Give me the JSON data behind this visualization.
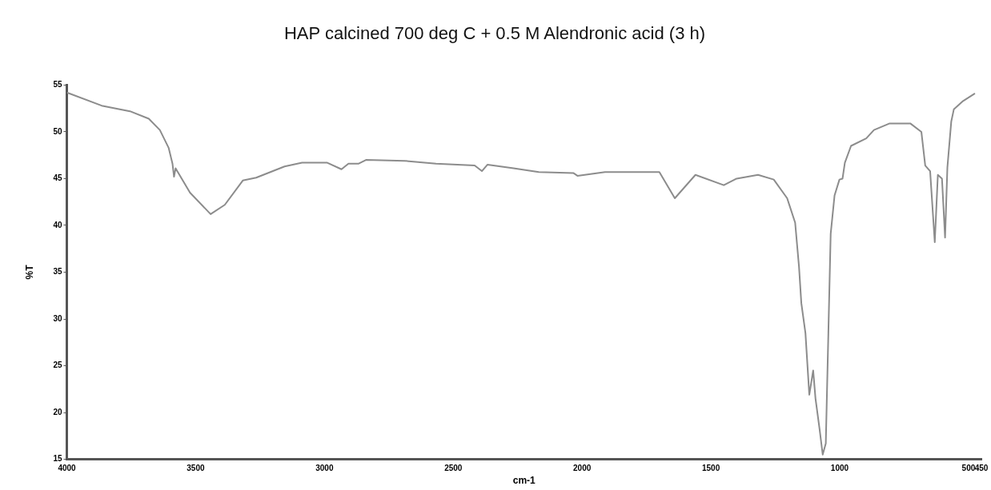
{
  "chart_data": {
    "type": "line",
    "title": "HAP calcined 700 deg C + 0.5 M Alendronic acid (3 h)",
    "xlabel": "cm-1",
    "ylabel": "%T",
    "xlim": [
      4000,
      450
    ],
    "xticks": [
      4000,
      3500,
      3000,
      2500,
      2000,
      1500,
      1000,
      500,
      450
    ],
    "ylim": [
      15,
      55
    ],
    "yticks": [
      15,
      20,
      25,
      30,
      35,
      40,
      45,
      50,
      55
    ],
    "grid": false,
    "legend": false,
    "marker": "none",
    "line_style": "solid",
    "series": [
      {
        "color": "#8c8c8c",
        "x": [
          4000,
          3865,
          3755,
          3682,
          3639,
          3605,
          3590,
          3584,
          3578,
          3522,
          3442,
          3387,
          3317,
          3265,
          3155,
          3087,
          2989,
          2934,
          2907,
          2867,
          2839,
          2689,
          2567,
          2417,
          2389,
          2367,
          2266,
          2168,
          2034,
          2018,
          1911,
          1700,
          1640,
          1560,
          1450,
          1400,
          1317,
          1256,
          1204,
          1173,
          1158,
          1149,
          1133,
          1118,
          1103,
          1094,
          1078,
          1066,
          1054,
          1044,
          1035,
          1020,
          1001,
          989,
          980,
          956,
          897,
          867,
          806,
          726,
          683,
          668,
          649,
          631,
          619,
          603,
          591,
          582,
          567,
          557,
          521,
          475
        ],
        "values": [
          54.2,
          52.8,
          52.2,
          51.4,
          50.2,
          48.3,
          46.6,
          45.2,
          46.1,
          43.5,
          41.2,
          42.2,
          44.8,
          45.1,
          46.3,
          46.7,
          46.7,
          46.0,
          46.6,
          46.6,
          47.0,
          46.9,
          46.6,
          46.4,
          45.8,
          46.5,
          46.1,
          45.7,
          45.6,
          45.3,
          45.7,
          45.7,
          42.9,
          45.4,
          44.3,
          45.0,
          45.4,
          44.9,
          42.9,
          40.3,
          35.6,
          31.7,
          28.5,
          21.9,
          24.5,
          21.5,
          18.2,
          15.5,
          16.7,
          28.5,
          39.1,
          43.2,
          44.9,
          45.0,
          46.7,
          48.5,
          49.3,
          50.2,
          50.9,
          50.9,
          50.0,
          46.4,
          45.8,
          38.2,
          45.4,
          45.0,
          38.7,
          46.2,
          51.1,
          52.4,
          53.3,
          54.1
        ]
      }
    ]
  }
}
